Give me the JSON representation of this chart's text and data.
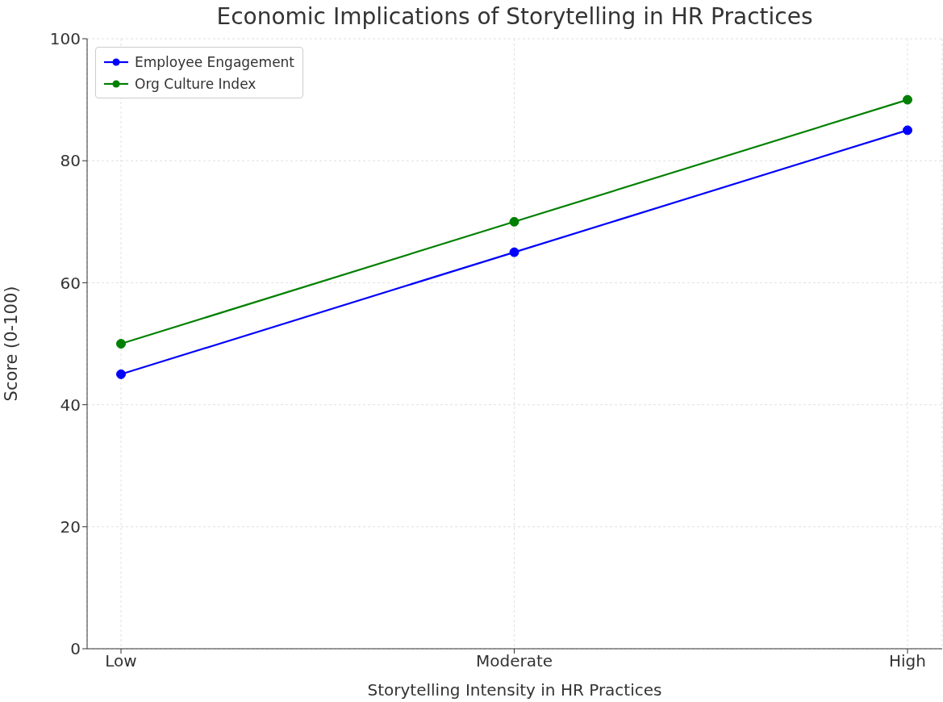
{
  "chart_data": {
    "type": "line",
    "title": "Economic Implications of Storytelling in HR Practices",
    "xlabel": "Storytelling Intensity in HR Practices",
    "ylabel": "Score (0-100)",
    "categories": [
      "Low",
      "Moderate",
      "High"
    ],
    "series": [
      {
        "name": "Employee Engagement",
        "color": "#0000ff",
        "values": [
          45,
          65,
          85
        ]
      },
      {
        "name": "Org Culture Index",
        "color": "#008000",
        "values": [
          50,
          70,
          90
        ]
      }
    ],
    "ylim": [
      0,
      100
    ],
    "yticks": [
      0,
      20,
      40,
      60,
      80,
      100
    ],
    "grid": true,
    "legend": "top left",
    "marker": "circle",
    "line_style": "solid"
  }
}
